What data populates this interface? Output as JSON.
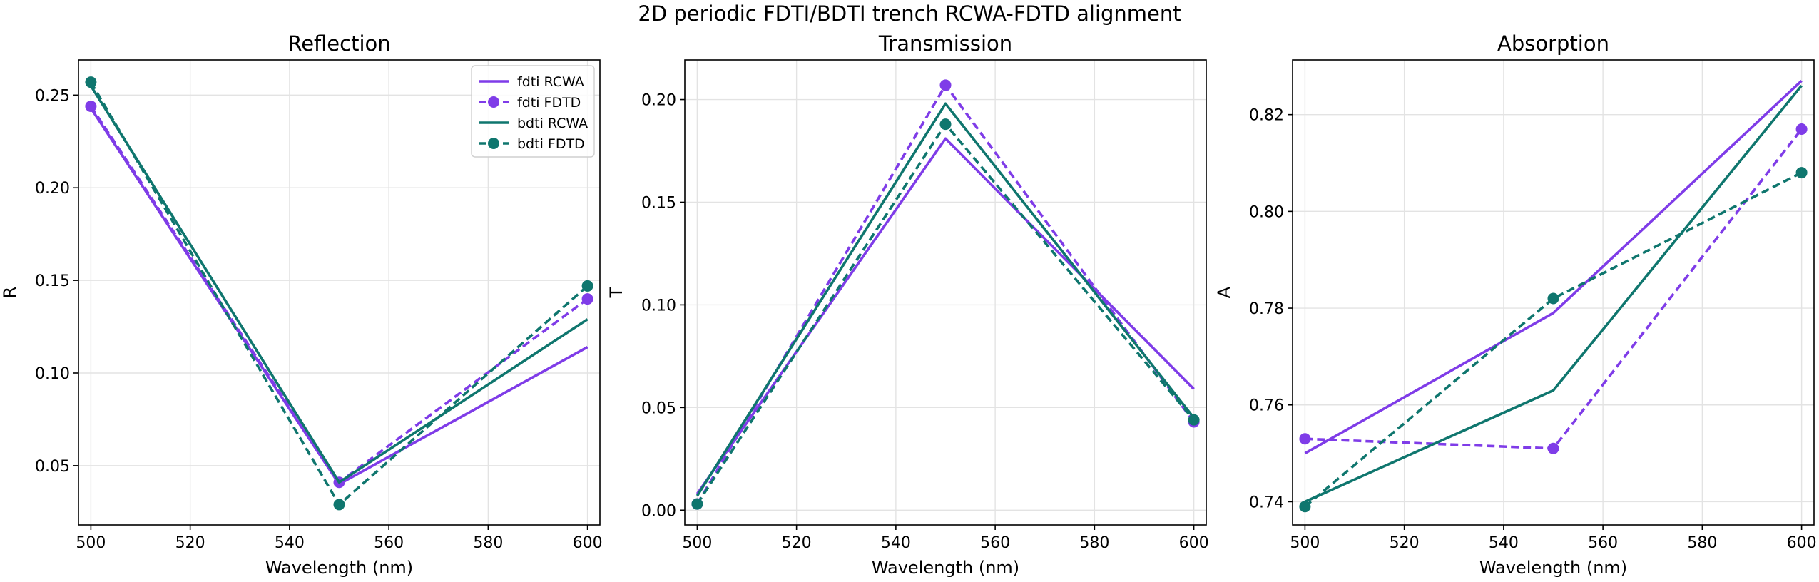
{
  "figure": {
    "title": "2D periodic FDTI/BDTI trench RCWA-FDTD alignment"
  },
  "colors": {
    "fdti": "#7f3ce8",
    "bdti": "#0f766e"
  },
  "chart_data": [
    {
      "type": "line",
      "title": "Reflection",
      "xlabel": "Wavelength (nm)",
      "ylabel": "R",
      "x": [
        500,
        550,
        600
      ],
      "xlim": [
        497.5,
        602.5
      ],
      "ylim": [
        0.018,
        0.269
      ],
      "xticks": [
        500,
        520,
        540,
        560,
        580,
        600
      ],
      "yticks": [
        0.05,
        0.1,
        0.15,
        0.2,
        0.25
      ],
      "ytick_decimals": 2,
      "grid": true,
      "legend": "top-right",
      "series": [
        {
          "name": "fdti RCWA",
          "values": [
            0.243,
            0.04,
            0.114
          ],
          "color": "fdti",
          "dashed": false,
          "markers": false
        },
        {
          "name": "fdti FDTD",
          "values": [
            0.244,
            0.041,
            0.14
          ],
          "color": "fdti",
          "dashed": true,
          "markers": true
        },
        {
          "name": "bdti RCWA",
          "values": [
            0.255,
            0.041,
            0.129
          ],
          "color": "bdti",
          "dashed": false,
          "markers": false
        },
        {
          "name": "bdti FDTD",
          "values": [
            0.257,
            0.029,
            0.147
          ],
          "color": "bdti",
          "dashed": true,
          "markers": true
        }
      ]
    },
    {
      "type": "line",
      "title": "Transmission",
      "xlabel": "Wavelength (nm)",
      "ylabel": "T",
      "x": [
        500,
        550,
        600
      ],
      "xlim": [
        497.5,
        602.5
      ],
      "ylim": [
        -0.0072,
        0.2193
      ],
      "xticks": [
        500,
        520,
        540,
        560,
        580,
        600
      ],
      "yticks": [
        0.0,
        0.05,
        0.1,
        0.15,
        0.2
      ],
      "ytick_decimals": 2,
      "grid": true,
      "series": [
        {
          "name": "fdti RCWA",
          "values": [
            0.008,
            0.181,
            0.059
          ],
          "color": "fdti",
          "dashed": false,
          "markers": false
        },
        {
          "name": "fdti FDTD",
          "values": [
            0.003,
            0.207,
            0.043
          ],
          "color": "fdti",
          "dashed": true,
          "markers": true
        },
        {
          "name": "bdti RCWA",
          "values": [
            0.007,
            0.198,
            0.045
          ],
          "color": "bdti",
          "dashed": false,
          "markers": false
        },
        {
          "name": "bdti FDTD",
          "values": [
            0.003,
            0.188,
            0.044
          ],
          "color": "bdti",
          "dashed": true,
          "markers": true
        }
      ]
    },
    {
      "type": "line",
      "title": "Absorption",
      "xlabel": "Wavelength (nm)",
      "ylabel": "A",
      "x": [
        500,
        550,
        600
      ],
      "xlim": [
        497.5,
        602.5
      ],
      "ylim": [
        0.7352,
        0.8313
      ],
      "xticks": [
        500,
        520,
        540,
        560,
        580,
        600
      ],
      "yticks": [
        0.74,
        0.76,
        0.78,
        0.8,
        0.82
      ],
      "ytick_decimals": 2,
      "grid": true,
      "series": [
        {
          "name": "fdti RCWA",
          "values": [
            0.75,
            0.779,
            0.827
          ],
          "color": "fdti",
          "dashed": false,
          "markers": false
        },
        {
          "name": "fdti FDTD",
          "values": [
            0.753,
            0.751,
            0.817
          ],
          "color": "fdti",
          "dashed": true,
          "markers": true
        },
        {
          "name": "bdti RCWA",
          "values": [
            0.74,
            0.763,
            0.826
          ],
          "color": "bdti",
          "dashed": false,
          "markers": false
        },
        {
          "name": "bdti FDTD",
          "values": [
            0.739,
            0.782,
            0.808
          ],
          "color": "bdti",
          "dashed": true,
          "markers": true
        }
      ]
    }
  ]
}
